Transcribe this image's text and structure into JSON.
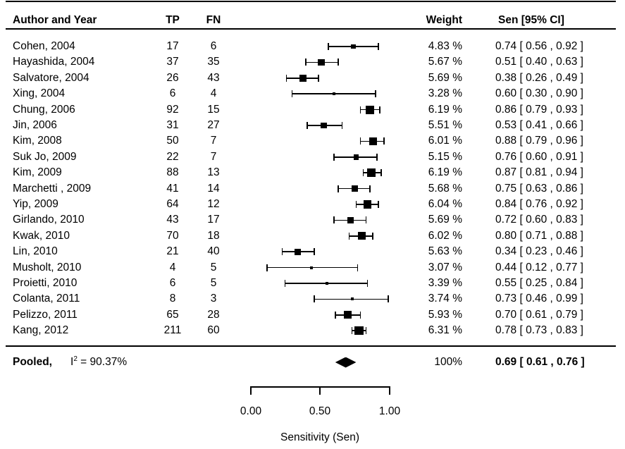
{
  "headers": {
    "author": "Author and Year",
    "tp": "TP",
    "fn": "FN",
    "weight": "Weight",
    "ci": "Sen [95% CI]"
  },
  "axis": {
    "ticks": [
      "0.00",
      "0.50",
      "1.00"
    ],
    "tick_values": [
      0.0,
      0.5,
      1.0
    ],
    "title": "Sensitivity (Sen)",
    "min": 0.0,
    "max": 1.0
  },
  "chart_data": {
    "type": "forest",
    "xlabel": "Sensitivity (Sen)",
    "xlim": [
      0.0,
      1.0
    ],
    "xticks": [
      0.0,
      0.5,
      1.0
    ],
    "columns": [
      "Author and Year",
      "TP",
      "FN",
      "Weight",
      "Sen [95% CI]"
    ],
    "studies": [
      {
        "author": "Cohen, 2004",
        "tp": 17,
        "fn": 6,
        "weight": "4.83 %",
        "weight_value": 4.83,
        "sen": 0.74,
        "ci_low": 0.56,
        "ci_high": 0.92,
        "ci_label": "0.74 [ 0.56 , 0.92 ]"
      },
      {
        "author": "Hayashida, 2004",
        "tp": 37,
        "fn": 35,
        "weight": "5.67 %",
        "weight_value": 5.67,
        "sen": 0.51,
        "ci_low": 0.4,
        "ci_high": 0.63,
        "ci_label": "0.51 [ 0.40 , 0.63 ]"
      },
      {
        "author": "Salvatore, 2004",
        "tp": 26,
        "fn": 43,
        "weight": "5.69 %",
        "weight_value": 5.69,
        "sen": 0.38,
        "ci_low": 0.26,
        "ci_high": 0.49,
        "ci_label": "0.38 [ 0.26 , 0.49 ]"
      },
      {
        "author": "Xing, 2004",
        "tp": 6,
        "fn": 4,
        "weight": "3.28 %",
        "weight_value": 3.28,
        "sen": 0.6,
        "ci_low": 0.3,
        "ci_high": 0.9,
        "ci_label": "0.60 [ 0.30 , 0.90 ]"
      },
      {
        "author": "Chung, 2006",
        "tp": 92,
        "fn": 15,
        "weight": "6.19 %",
        "weight_value": 6.19,
        "sen": 0.86,
        "ci_low": 0.79,
        "ci_high": 0.93,
        "ci_label": "0.86 [ 0.79 , 0.93 ]"
      },
      {
        "author": "Jin, 2006",
        "tp": 31,
        "fn": 27,
        "weight": "5.51 %",
        "weight_value": 5.51,
        "sen": 0.53,
        "ci_low": 0.41,
        "ci_high": 0.66,
        "ci_label": "0.53 [ 0.41 , 0.66 ]"
      },
      {
        "author": "Kim, 2008",
        "tp": 50,
        "fn": 7,
        "weight": "6.01 %",
        "weight_value": 6.01,
        "sen": 0.88,
        "ci_low": 0.79,
        "ci_high": 0.96,
        "ci_label": "0.88 [ 0.79 , 0.96 ]"
      },
      {
        "author": "Suk Jo, 2009",
        "tp": 22,
        "fn": 7,
        "weight": "5.15 %",
        "weight_value": 5.15,
        "sen": 0.76,
        "ci_low": 0.6,
        "ci_high": 0.91,
        "ci_label": "0.76 [ 0.60 , 0.91 ]"
      },
      {
        "author": "Kim, 2009",
        "tp": 88,
        "fn": 13,
        "weight": "6.19 %",
        "weight_value": 6.19,
        "sen": 0.87,
        "ci_low": 0.81,
        "ci_high": 0.94,
        "ci_label": "0.87 [ 0.81 , 0.94 ]"
      },
      {
        "author": "Marchetti , 2009",
        "tp": 41,
        "fn": 14,
        "weight": "5.68 %",
        "weight_value": 5.68,
        "sen": 0.75,
        "ci_low": 0.63,
        "ci_high": 0.86,
        "ci_label": "0.75 [ 0.63 , 0.86 ]"
      },
      {
        "author": "Yip, 2009",
        "tp": 64,
        "fn": 12,
        "weight": "6.04 %",
        "weight_value": 6.04,
        "sen": 0.84,
        "ci_low": 0.76,
        "ci_high": 0.92,
        "ci_label": "0.84 [ 0.76 , 0.92 ]"
      },
      {
        "author": "Girlando, 2010",
        "tp": 43,
        "fn": 17,
        "weight": "5.69 %",
        "weight_value": 5.69,
        "sen": 0.72,
        "ci_low": 0.6,
        "ci_high": 0.83,
        "ci_label": "0.72 [ 0.60 , 0.83 ]"
      },
      {
        "author": "Kwak, 2010",
        "tp": 70,
        "fn": 18,
        "weight": "6.02 %",
        "weight_value": 6.02,
        "sen": 0.8,
        "ci_low": 0.71,
        "ci_high": 0.88,
        "ci_label": "0.80 [ 0.71 , 0.88 ]"
      },
      {
        "author": "Lin, 2010",
        "tp": 21,
        "fn": 40,
        "weight": "5.63 %",
        "weight_value": 5.63,
        "sen": 0.34,
        "ci_low": 0.23,
        "ci_high": 0.46,
        "ci_label": "0.34 [ 0.23 , 0.46 ]"
      },
      {
        "author": "Musholt, 2010",
        "tp": 4,
        "fn": 5,
        "weight": "3.07 %",
        "weight_value": 3.07,
        "sen": 0.44,
        "ci_low": 0.12,
        "ci_high": 0.77,
        "ci_label": "0.44 [ 0.12 , 0.77 ]"
      },
      {
        "author": "Proietti, 2010",
        "tp": 6,
        "fn": 5,
        "weight": "3.39 %",
        "weight_value": 3.39,
        "sen": 0.55,
        "ci_low": 0.25,
        "ci_high": 0.84,
        "ci_label": "0.55 [ 0.25 , 0.84 ]"
      },
      {
        "author": "Colanta, 2011",
        "tp": 8,
        "fn": 3,
        "weight": "3.74 %",
        "weight_value": 3.74,
        "sen": 0.73,
        "ci_low": 0.46,
        "ci_high": 0.99,
        "ci_label": "0.73 [ 0.46 , 0.99 ]"
      },
      {
        "author": "Pelizzo, 2011",
        "tp": 65,
        "fn": 28,
        "weight": "5.93 %",
        "weight_value": 5.93,
        "sen": 0.7,
        "ci_low": 0.61,
        "ci_high": 0.79,
        "ci_label": "0.70 [ 0.61 , 0.79 ]"
      },
      {
        "author": "Kang, 2012",
        "tp": 211,
        "fn": 60,
        "weight": "6.31 %",
        "weight_value": 6.31,
        "sen": 0.78,
        "ci_low": 0.73,
        "ci_high": 0.83,
        "ci_label": "0.78 [ 0.73 , 0.83 ]"
      }
    ],
    "pooled": {
      "label": "Pooled,",
      "het_base": "I",
      "het_exp": "2",
      "het_tail": " = 90.37%",
      "i2": "90.37%",
      "weight": "100%",
      "sen": 0.69,
      "ci_low": 0.61,
      "ci_high": 0.76,
      "ci_label": "0.69 [ 0.61 , 0.76 ]"
    }
  }
}
